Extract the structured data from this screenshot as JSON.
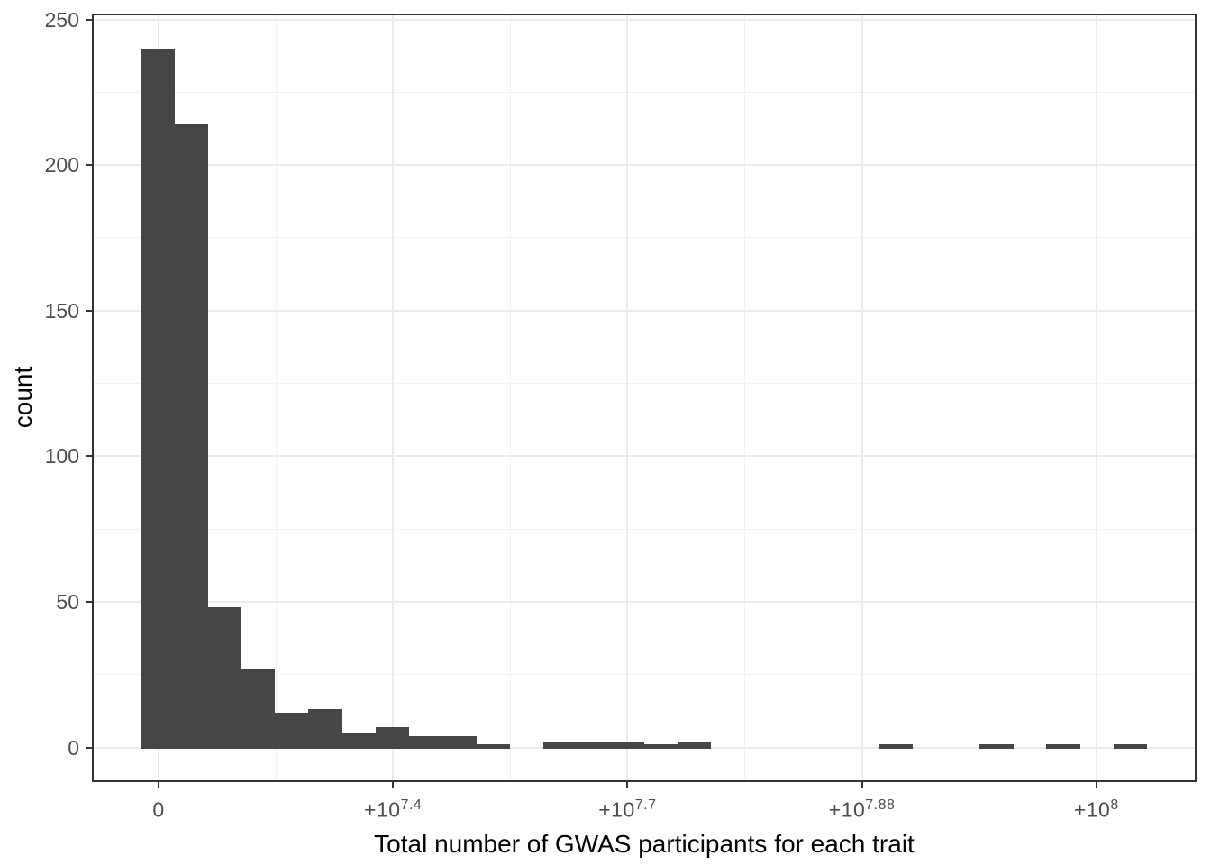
{
  "chart_data": {
    "type": "bar",
    "subtype": "histogram",
    "title": "",
    "xlabel": "Total number of GWAS participants for each trait",
    "ylabel": "count",
    "x_scale_note": "linear axis with breaks every 25 million participants; tick labels rendered in +10^exponent notation",
    "bin_width": 3580000,
    "first_bin_center": 0,
    "counts": [
      240,
      214,
      48,
      27,
      12,
      13,
      5,
      7,
      4,
      4,
      1,
      0,
      2,
      2,
      2,
      1,
      2,
      0,
      0,
      0,
      0,
      0,
      1,
      0,
      0,
      1,
      0,
      1,
      0,
      1
    ],
    "x_ticks": [
      {
        "value": 0,
        "base": "0",
        "sup": ""
      },
      {
        "value": 25000000,
        "base": "+10",
        "sup": "7.4"
      },
      {
        "value": 50000000,
        "base": "+10",
        "sup": "7.7"
      },
      {
        "value": 75000000,
        "base": "+10",
        "sup": "7.88"
      },
      {
        "value": 100000000,
        "base": "+10",
        "sup": "8"
      }
    ],
    "y_ticks": [
      0,
      50,
      100,
      150,
      200,
      250
    ],
    "ylim": [
      -12,
      252
    ],
    "xlim": [
      -7300000,
      110900000
    ],
    "grid": true,
    "legend_position": "none",
    "colors": {
      "bar_fill": "#464646",
      "grid_major": "#EBEBEB",
      "grid_minor": "#F1F1F1",
      "panel_border": "#333333",
      "tick_mark": "#333333",
      "tick_label": "#4D4D4D",
      "axis_title": "#000000",
      "background": "#FFFFFF"
    }
  }
}
